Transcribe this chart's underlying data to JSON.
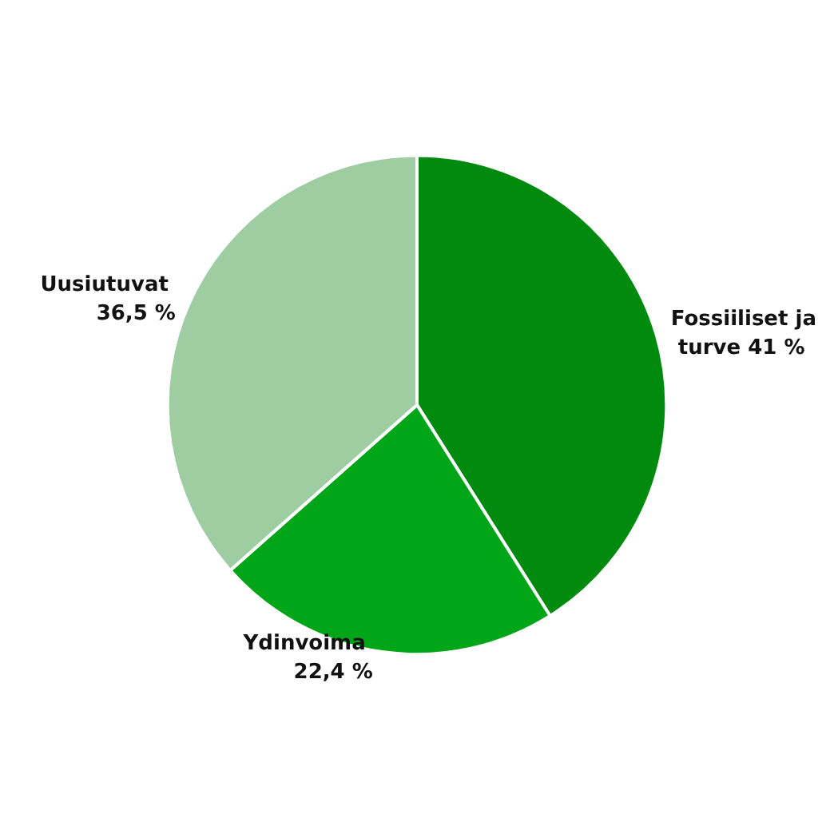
{
  "chart_data": {
    "type": "pie",
    "categories": [
      "Fossiiliset ja turve",
      "Ydinvoima",
      "Uusiutuvat"
    ],
    "values": [
      41,
      22.4,
      36.5
    ],
    "value_labels": [
      "41 %",
      "22,4 %",
      "36,5 %"
    ],
    "colors": [
      "#008a0e",
      "#00a617",
      "#9ecda1"
    ],
    "legend": false
  }
}
